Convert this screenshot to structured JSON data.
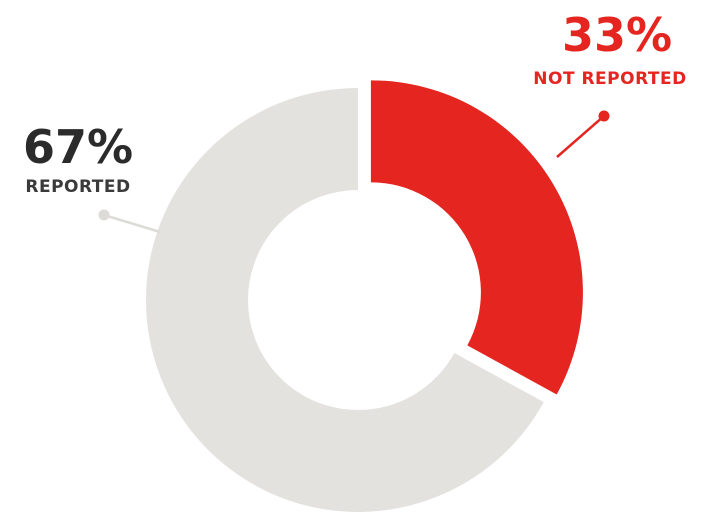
{
  "chart_data": {
    "type": "pie",
    "title": "",
    "categories": [
      "REPORTED",
      "NOT REPORTED"
    ],
    "values": [
      67,
      33
    ],
    "value_labels": [
      "67%",
      "33%"
    ],
    "colors": [
      "#e3e2df",
      "#e52520"
    ],
    "exploded": [
      false,
      true
    ],
    "label_colors": {
      "percent": [
        "#2b2b2b",
        "#e52520"
      ],
      "category": [
        "#3a3a3a",
        "#e52520"
      ]
    },
    "style": "donut"
  }
}
